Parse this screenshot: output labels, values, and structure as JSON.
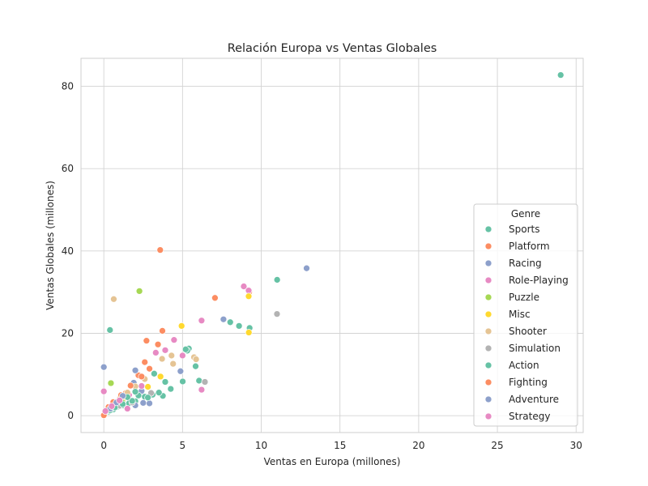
{
  "chart_data": {
    "type": "scatter",
    "title": "Relación Europa vs Ventas Globales",
    "xlabel": "Ventas en Europa (millones)",
    "ylabel": "Ventas Globales (millones)",
    "xlim": [
      -1.45,
      30.45
    ],
    "ylim": [
      -4.1,
      86.8
    ],
    "xticks": [
      0,
      5,
      10,
      15,
      20,
      25,
      30
    ],
    "yticks": [
      0,
      20,
      40,
      60,
      80
    ],
    "grid": true,
    "legend": {
      "title": "Genre",
      "placement": "bottom-right"
    },
    "series": [
      {
        "name": "Sports",
        "color": "#66c2a5",
        "points": [
          [
            29.02,
            82.74
          ],
          [
            11.01,
            33.0
          ],
          [
            8.03,
            22.7
          ],
          [
            8.59,
            21.8
          ],
          [
            9.26,
            21.3
          ],
          [
            0.39,
            20.8
          ],
          [
            5.4,
            16.3
          ],
          [
            5.3,
            15.8
          ],
          [
            5.83,
            12.0
          ],
          [
            5.01,
            8.3
          ],
          [
            6.05,
            8.5
          ],
          [
            3.75,
            4.8
          ],
          [
            3.1,
            5.1
          ],
          [
            2.6,
            4.6
          ],
          [
            2.0,
            3.5
          ],
          [
            1.6,
            3.0
          ],
          [
            1.2,
            2.5
          ],
          [
            0.9,
            2.2
          ],
          [
            0.6,
            1.5
          ],
          [
            0.3,
            1.0
          ]
        ]
      },
      {
        "name": "Platform",
        "color": "#fc8d62",
        "points": [
          [
            3.58,
            40.24
          ],
          [
            7.06,
            28.6
          ],
          [
            9.23,
            30.0
          ],
          [
            3.72,
            20.6
          ],
          [
            2.71,
            18.2
          ],
          [
            3.44,
            17.3
          ],
          [
            2.6,
            13.0
          ],
          [
            2.2,
            9.8
          ],
          [
            1.8,
            7.5
          ],
          [
            1.4,
            5.5
          ],
          [
            1.0,
            4.2
          ],
          [
            0.0,
            0.1
          ]
        ]
      },
      {
        "name": "Racing",
        "color": "#8da0cb",
        "points": [
          [
            12.88,
            35.8
          ],
          [
            7.6,
            23.4
          ],
          [
            4.87,
            10.8
          ],
          [
            0.0,
            11.8
          ],
          [
            2.9,
            3.0
          ],
          [
            2.0,
            2.5
          ],
          [
            2.4,
            6.0
          ],
          [
            1.9,
            8.0
          ]
        ]
      },
      {
        "name": "Role-Playing",
        "color": "#e78ac3",
        "points": [
          [
            8.89,
            31.4
          ],
          [
            9.2,
            30.4
          ],
          [
            6.21,
            23.1
          ],
          [
            4.46,
            18.4
          ],
          [
            3.9,
            15.9
          ],
          [
            3.3,
            15.3
          ],
          [
            5.0,
            14.6
          ],
          [
            0.0,
            5.9
          ],
          [
            2.4,
            7.2
          ],
          [
            1.6,
            5.0
          ]
        ]
      },
      {
        "name": "Puzzle",
        "color": "#a6d854",
        "points": [
          [
            2.26,
            30.26
          ],
          [
            0.45,
            7.9
          ],
          [
            1.2,
            3.8
          ],
          [
            0.6,
            2.6
          ]
        ]
      },
      {
        "name": "Misc",
        "color": "#ffd92f",
        "points": [
          [
            9.2,
            29.0
          ],
          [
            4.94,
            21.8
          ],
          [
            9.21,
            20.2
          ],
          [
            3.6,
            9.5
          ],
          [
            2.8,
            7.0
          ],
          [
            1.4,
            4.5
          ]
        ]
      },
      {
        "name": "Shooter",
        "color": "#e5c494",
        "points": [
          [
            0.63,
            28.31
          ],
          [
            5.73,
            14.2
          ],
          [
            5.86,
            13.7
          ],
          [
            4.3,
            14.6
          ],
          [
            3.7,
            13.8
          ],
          [
            4.4,
            12.6
          ],
          [
            3.2,
            10.3
          ],
          [
            2.6,
            8.9
          ],
          [
            2.0,
            7.1
          ],
          [
            1.5,
            5.6
          ],
          [
            1.0,
            4.0
          ]
        ]
      },
      {
        "name": "Simulation",
        "color": "#b3b3b3",
        "points": [
          [
            11.0,
            24.7
          ],
          [
            6.42,
            8.2
          ],
          [
            3.0,
            5.5
          ],
          [
            1.8,
            3.2
          ],
          [
            1.0,
            2.4
          ],
          [
            0.5,
            1.8
          ],
          [
            0.2,
            1.2
          ]
        ]
      },
      {
        "name": "Action",
        "color": "#66c2a5",
        "points": [
          [
            5.2,
            16.1
          ],
          [
            3.2,
            10.2
          ],
          [
            3.9,
            8.2
          ],
          [
            4.25,
            6.5
          ],
          [
            3.5,
            5.6
          ],
          [
            2.8,
            4.4
          ],
          [
            2.2,
            4.9
          ],
          [
            1.8,
            3.6
          ],
          [
            1.2,
            2.8
          ],
          [
            0.7,
            2.0
          ],
          [
            0.4,
            1.3
          ],
          [
            2.0,
            5.8
          ],
          [
            1.5,
            4.5
          ]
        ]
      },
      {
        "name": "Fighting",
        "color": "#fc8d62",
        "points": [
          [
            2.9,
            11.4
          ],
          [
            2.4,
            9.5
          ],
          [
            1.7,
            7.3
          ],
          [
            1.1,
            5.0
          ],
          [
            0.6,
            3.3
          ],
          [
            0.3,
            2.1
          ]
        ]
      },
      {
        "name": "Adventure",
        "color": "#8da0cb",
        "points": [
          [
            2.0,
            11.0
          ],
          [
            1.2,
            4.8
          ],
          [
            0.8,
            3.2
          ],
          [
            0.4,
            1.7
          ],
          [
            2.5,
            3.1
          ]
        ]
      },
      {
        "name": "Strategy",
        "color": "#e78ac3",
        "points": [
          [
            6.21,
            6.3
          ],
          [
            1.5,
            1.7
          ],
          [
            1.0,
            3.7
          ],
          [
            0.5,
            2.3
          ],
          [
            0.1,
            1.1
          ]
        ]
      }
    ]
  }
}
